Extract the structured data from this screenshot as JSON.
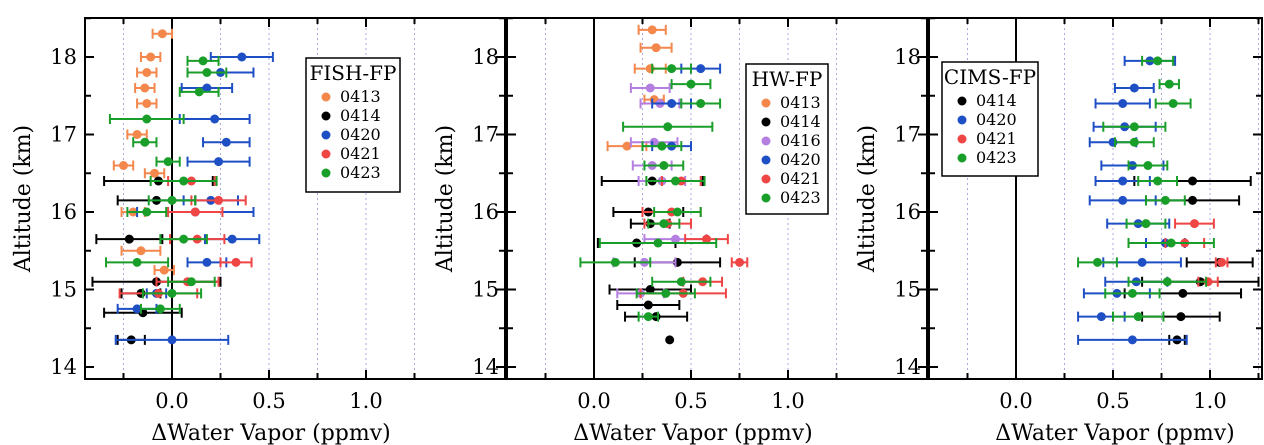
{
  "chart_data": [
    {
      "type": "scatter",
      "title": "",
      "legend_title": "FISH-FP",
      "legend_position": "top-right",
      "xlabel": "ΔWater Vapor (ppmv)",
      "ylabel": "Altitude (km)",
      "xlim": [
        -0.45,
        1.27
      ],
      "ylim": [
        13.9,
        18.7
      ],
      "xticks": [
        "0.0",
        "0.5",
        "1.0"
      ],
      "yticks": [
        "14",
        "15",
        "16",
        "17",
        "18"
      ],
      "grid": "dotted vertical at 0.25 steps",
      "series": [
        {
          "name": "0413",
          "color": "#f4874b",
          "points": [
            {
              "x": -0.05,
              "y": 18.3,
              "err": 0.05
            },
            {
              "x": -0.11,
              "y": 18.0,
              "err": 0.05
            },
            {
              "x": -0.13,
              "y": 17.8,
              "err": 0.05
            },
            {
              "x": -0.14,
              "y": 17.6,
              "err": 0.05
            },
            {
              "x": -0.13,
              "y": 17.4,
              "err": 0.05
            },
            {
              "x": -0.18,
              "y": 17.0,
              "err": 0.05
            },
            {
              "x": -0.25,
              "y": 16.6,
              "err": 0.05
            },
            {
              "x": -0.09,
              "y": 16.5,
              "err": 0.05
            },
            {
              "x": -0.2,
              "y": 16.0,
              "err": 0.06
            },
            {
              "x": -0.16,
              "y": 15.5,
              "err": 0.1
            },
            {
              "x": -0.04,
              "y": 15.25,
              "err": 0.05
            }
          ]
        },
        {
          "name": "0414",
          "color": "#000000",
          "points": [
            {
              "x": -0.07,
              "y": 16.4,
              "err": 0.28
            },
            {
              "x": -0.08,
              "y": 16.15,
              "err": 0.2
            },
            {
              "x": -0.22,
              "y": 15.65,
              "err": 0.17
            },
            {
              "x": -0.08,
              "y": 15.1,
              "err": 0.33
            },
            {
              "x": -0.16,
              "y": 14.95,
              "err": 0.1
            },
            {
              "x": -0.15,
              "y": 14.7,
              "err": 0.2
            },
            {
              "x": -0.21,
              "y": 14.35,
              "err": 0.07
            }
          ]
        },
        {
          "name": "0420",
          "color": "#1e4fc4",
          "points": [
            {
              "x": 0.36,
              "y": 18.0,
              "err": 0.16
            },
            {
              "x": 0.25,
              "y": 17.8,
              "err": 0.17
            },
            {
              "x": 0.18,
              "y": 17.6,
              "err": 0.13
            },
            {
              "x": 0.22,
              "y": 17.2,
              "err": 0.18
            },
            {
              "x": 0.28,
              "y": 16.9,
              "err": 0.12
            },
            {
              "x": 0.24,
              "y": 16.65,
              "err": 0.16
            },
            {
              "x": 0.2,
              "y": 16.15,
              "err": 0.14
            },
            {
              "x": 0.12,
              "y": 16.0,
              "err": 0.3
            },
            {
              "x": 0.31,
              "y": 15.65,
              "err": 0.14
            },
            {
              "x": 0.18,
              "y": 15.35,
              "err": 0.1
            },
            {
              "x": -0.08,
              "y": 14.95,
              "err": 0.05
            },
            {
              "x": -0.18,
              "y": 14.75,
              "err": 0.1
            },
            {
              "x": 0.0,
              "y": 14.35,
              "err": 0.29
            }
          ]
        },
        {
          "name": "0421",
          "color": "#ef4545",
          "points": [
            {
              "x": 0.1,
              "y": 16.4,
              "err": 0.12
            },
            {
              "x": 0.24,
              "y": 16.15,
              "err": 0.14
            },
            {
              "x": 0.12,
              "y": 16.0,
              "err": 0.14
            },
            {
              "x": 0.13,
              "y": 15.65,
              "err": 0.14
            },
            {
              "x": 0.33,
              "y": 15.35,
              "err": 0.08
            },
            {
              "x": 0.08,
              "y": 15.1,
              "err": 0.16
            },
            {
              "x": -0.07,
              "y": 14.95,
              "err": 0.2
            }
          ]
        },
        {
          "name": "0423",
          "color": "#1a9e2a",
          "points": [
            {
              "x": 0.16,
              "y": 17.95,
              "err": 0.08
            },
            {
              "x": 0.18,
              "y": 17.8,
              "err": 0.1
            },
            {
              "x": 0.14,
              "y": 17.55,
              "err": 0.1
            },
            {
              "x": -0.13,
              "y": 17.2,
              "err": 0.19
            },
            {
              "x": -0.14,
              "y": 16.9,
              "err": 0.06
            },
            {
              "x": -0.02,
              "y": 16.65,
              "err": 0.06
            },
            {
              "x": 0.06,
              "y": 16.4,
              "err": 0.17
            },
            {
              "x": 0.0,
              "y": 16.15,
              "err": 0.12
            },
            {
              "x": -0.13,
              "y": 16.0,
              "err": 0.1
            },
            {
              "x": 0.06,
              "y": 15.65,
              "err": 0.12
            },
            {
              "x": -0.18,
              "y": 15.35,
              "err": 0.16
            },
            {
              "x": 0.1,
              "y": 15.1,
              "err": 0.12
            },
            {
              "x": 0.0,
              "y": 14.95,
              "err": 0.15
            },
            {
              "x": -0.06,
              "y": 14.75,
              "err": 0.1
            }
          ]
        }
      ]
    },
    {
      "type": "scatter",
      "title": "",
      "legend_title": "HW-FP",
      "legend_position": "top-right",
      "xlabel": "ΔWater Vapor (ppmv)",
      "ylabel": "Altitude (km)",
      "xlim": [
        -0.45,
        1.27
      ],
      "ylim": [
        13.9,
        18.7
      ],
      "xticks": [
        "0.0",
        "0.5",
        "1.0"
      ],
      "yticks": [
        "14",
        "15",
        "16",
        "17",
        "18"
      ],
      "grid": "dotted vertical at 0.25 steps",
      "series": [
        {
          "name": "0413",
          "color": "#f4874b",
          "points": [
            {
              "x": 0.3,
              "y": 18.35,
              "err": 0.07
            },
            {
              "x": 0.32,
              "y": 18.12,
              "err": 0.08
            },
            {
              "x": 0.29,
              "y": 17.85,
              "err": 0.08
            },
            {
              "x": 0.31,
              "y": 17.45,
              "err": 0.05
            },
            {
              "x": 0.17,
              "y": 16.85,
              "err": 0.1
            }
          ]
        },
        {
          "name": "0414",
          "color": "#000000",
          "points": [
            {
              "x": 0.3,
              "y": 16.4,
              "err": 0.26
            },
            {
              "x": 0.28,
              "y": 16.0,
              "err": 0.18
            },
            {
              "x": 0.29,
              "y": 15.85,
              "err": 0.1
            },
            {
              "x": 0.22,
              "y": 15.6,
              "err": 0.2
            },
            {
              "x": 0.43,
              "y": 15.35,
              "err": 0.22
            },
            {
              "x": 0.29,
              "y": 15.0,
              "err": 0.21
            },
            {
              "x": 0.28,
              "y": 14.8,
              "err": 0.16
            },
            {
              "x": 0.32,
              "y": 14.65,
              "err": 0.16
            },
            {
              "x": 0.39,
              "y": 14.35,
              "err": 0.0
            }
          ]
        },
        {
          "name": "0416",
          "color": "#b47fe0",
          "points": [
            {
              "x": 0.29,
              "y": 17.6,
              "err": 0.1
            },
            {
              "x": 0.34,
              "y": 17.4,
              "err": 0.1
            },
            {
              "x": 0.31,
              "y": 16.9,
              "err": 0.12
            },
            {
              "x": 0.3,
              "y": 16.6,
              "err": 0.1
            },
            {
              "x": 0.35,
              "y": 16.4,
              "err": 0.12
            },
            {
              "x": 0.42,
              "y": 15.65,
              "err": 0.16
            },
            {
              "x": 0.26,
              "y": 15.35,
              "err": 0.16
            },
            {
              "x": 0.24,
              "y": 14.95,
              "err": 0.12
            }
          ]
        },
        {
          "name": "0420",
          "color": "#1e4fc4",
          "points": [
            {
              "x": 0.55,
              "y": 17.85,
              "err": 0.1
            },
            {
              "x": 0.4,
              "y": 17.4,
              "err": 0.1
            },
            {
              "x": 0.4,
              "y": 16.85,
              "err": 0.1
            }
          ]
        },
        {
          "name": "0421",
          "color": "#ef4545",
          "points": [
            {
              "x": 0.45,
              "y": 16.4,
              "err": 0.1
            },
            {
              "x": 0.4,
              "y": 16.0,
              "err": 0.15
            },
            {
              "x": 0.38,
              "y": 15.85,
              "err": 0.12
            },
            {
              "x": 0.58,
              "y": 15.65,
              "err": 0.11
            },
            {
              "x": 0.75,
              "y": 15.35,
              "err": 0.04
            },
            {
              "x": 0.56,
              "y": 15.1,
              "err": 0.1
            },
            {
              "x": 0.46,
              "y": 14.95,
              "err": 0.22
            }
          ]
        },
        {
          "name": "0423",
          "color": "#1a9e2a",
          "points": [
            {
              "x": 0.4,
              "y": 17.85,
              "err": 0.1
            },
            {
              "x": 0.5,
              "y": 17.65,
              "err": 0.1
            },
            {
              "x": 0.55,
              "y": 17.4,
              "err": 0.1
            },
            {
              "x": 0.38,
              "y": 17.1,
              "err": 0.23
            },
            {
              "x": 0.35,
              "y": 16.85,
              "err": 0.1
            },
            {
              "x": 0.36,
              "y": 16.6,
              "err": 0.1
            },
            {
              "x": 0.42,
              "y": 16.4,
              "err": 0.15
            },
            {
              "x": 0.43,
              "y": 16.0,
              "err": 0.12
            },
            {
              "x": 0.36,
              "y": 15.85,
              "err": 0.08
            },
            {
              "x": 0.33,
              "y": 15.6,
              "err": 0.3
            },
            {
              "x": 0.11,
              "y": 15.35,
              "err": 0.18
            },
            {
              "x": 0.45,
              "y": 15.1,
              "err": 0.15
            },
            {
              "x": 0.37,
              "y": 14.95,
              "err": 0.15
            },
            {
              "x": 0.28,
              "y": 14.65,
              "err": 0.05
            }
          ]
        }
      ]
    },
    {
      "type": "scatter",
      "title": "",
      "legend_title": "CIMS-FP",
      "legend_position": "top-left",
      "xlabel": "ΔWater Vapor (ppmv)",
      "ylabel": "Altitude (km)",
      "xlim": [
        -0.45,
        1.27
      ],
      "ylim": [
        13.9,
        18.7
      ],
      "xticks": [
        "0.0",
        "0.5",
        "1.0"
      ],
      "yticks": [
        "14",
        "15",
        "16",
        "17",
        "18"
      ],
      "grid": "dotted vertical at 0.25 steps",
      "series": [
        {
          "name": "0414",
          "color": "#000000",
          "points": [
            {
              "x": 0.91,
              "y": 16.4,
              "err": 0.3
            },
            {
              "x": 0.91,
              "y": 16.15,
              "err": 0.24
            },
            {
              "x": 1.05,
              "y": 15.35,
              "err": 0.17
            },
            {
              "x": 0.95,
              "y": 15.1,
              "err": 0.3
            },
            {
              "x": 0.86,
              "y": 14.95,
              "err": 0.3
            },
            {
              "x": 0.85,
              "y": 14.65,
              "err": 0.2
            },
            {
              "x": 0.83,
              "y": 14.35,
              "err": 0.04
            }
          ]
        },
        {
          "name": "0420",
          "color": "#1e4fc4",
          "points": [
            {
              "x": 0.69,
              "y": 17.95,
              "err": 0.13
            },
            {
              "x": 0.61,
              "y": 17.6,
              "err": 0.1
            },
            {
              "x": 0.55,
              "y": 17.4,
              "err": 0.14
            },
            {
              "x": 0.56,
              "y": 17.1,
              "err": 0.16
            },
            {
              "x": 0.5,
              "y": 16.9,
              "err": 0.12
            },
            {
              "x": 0.6,
              "y": 16.6,
              "err": 0.16
            },
            {
              "x": 0.55,
              "y": 16.4,
              "err": 0.14
            },
            {
              "x": 0.55,
              "y": 16.15,
              "err": 0.17
            },
            {
              "x": 0.63,
              "y": 15.85,
              "err": 0.16
            },
            {
              "x": 0.77,
              "y": 15.6,
              "err": 0.1
            },
            {
              "x": 0.65,
              "y": 15.35,
              "err": 0.2
            },
            {
              "x": 0.62,
              "y": 15.1,
              "err": 0.16
            },
            {
              "x": 0.52,
              "y": 14.95,
              "err": 0.17
            },
            {
              "x": 0.44,
              "y": 14.65,
              "err": 0.12
            },
            {
              "x": 0.6,
              "y": 14.35,
              "err": 0.28
            }
          ]
        },
        {
          "name": "0421",
          "color": "#ef4545",
          "points": [
            {
              "x": 0.92,
              "y": 15.85,
              "err": 0.1
            },
            {
              "x": 0.87,
              "y": 15.6,
              "err": 0.1
            },
            {
              "x": 1.06,
              "y": 15.35,
              "err": 0.03
            },
            {
              "x": 0.99,
              "y": 15.1,
              "err": 0.05
            }
          ]
        },
        {
          "name": "0423",
          "color": "#1a9e2a",
          "points": [
            {
              "x": 0.73,
              "y": 17.95,
              "err": 0.08
            },
            {
              "x": 0.79,
              "y": 17.65,
              "err": 0.05
            },
            {
              "x": 0.81,
              "y": 17.4,
              "err": 0.09
            },
            {
              "x": 0.61,
              "y": 17.1,
              "err": 0.16
            },
            {
              "x": 0.61,
              "y": 16.9,
              "err": 0.1
            },
            {
              "x": 0.68,
              "y": 16.6,
              "err": 0.1
            },
            {
              "x": 0.73,
              "y": 16.4,
              "err": 0.1
            },
            {
              "x": 0.77,
              "y": 16.15,
              "err": 0.1
            },
            {
              "x": 0.67,
              "y": 15.85,
              "err": 0.1
            },
            {
              "x": 0.8,
              "y": 15.6,
              "err": 0.22
            },
            {
              "x": 0.42,
              "y": 15.35,
              "err": 0.1
            },
            {
              "x": 0.78,
              "y": 15.1,
              "err": 0.2
            },
            {
              "x": 0.6,
              "y": 14.95,
              "err": 0.14
            },
            {
              "x": 0.63,
              "y": 14.65,
              "err": 0.13
            }
          ]
        }
      ]
    }
  ]
}
